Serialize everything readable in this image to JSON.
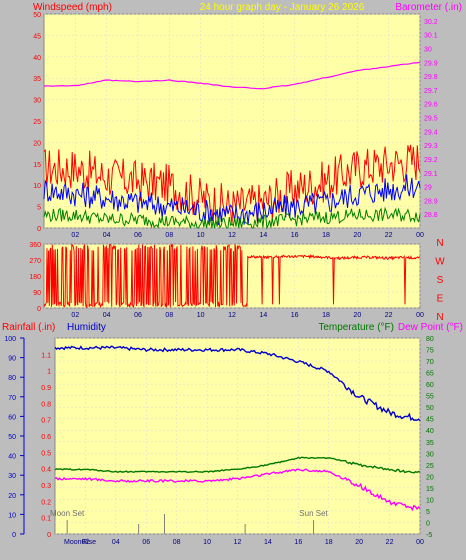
{
  "header": {
    "left_label": "Windspeed (mph)",
    "center_label": "24 hour graph day - January 26 2026",
    "right_label": "Barometer (.in)"
  },
  "colors": {
    "wind_gust": "#ff0000",
    "wind_avg": "#0000ff",
    "wind_min": "#008000",
    "barometer": "#ff00ff",
    "direction": "#ff0000",
    "humidity": "#0000cc",
    "temperature": "#007700",
    "dewpoint": "#ff00ff",
    "plot_bg": "#ffffa8",
    "header_bg": "#bdbdbd"
  },
  "chart_data": [
    {
      "type": "line",
      "panel": "wind_barometer",
      "x_ticks": [
        "02",
        "04",
        "06",
        "08",
        "10",
        "12",
        "14",
        "16",
        "18",
        "20",
        "22",
        "00"
      ],
      "left_axis": {
        "label": "Windspeed (mph)",
        "range": [
          0,
          50
        ],
        "ticks": [
          0,
          5,
          10,
          15,
          20,
          25,
          30,
          35,
          40,
          45,
          50
        ]
      },
      "right_axis": {
        "label": "Barometer (.in)",
        "range": [
          28.7,
          30.25
        ],
        "ticks": [
          "28.8",
          "28.9",
          "29",
          "29.1",
          "29.2",
          "29.3",
          "29.4",
          "29.5",
          "29.6",
          "29.7",
          "29.8",
          "29.9",
          "30",
          "30.1",
          "30.2"
        ]
      },
      "x_hours": [
        0,
        2,
        4,
        6,
        8,
        10,
        12,
        14,
        16,
        18,
        20,
        22,
        24
      ],
      "series": [
        {
          "name": "Wind gust",
          "values": [
            14,
            14,
            12,
            11,
            10,
            7,
            5,
            6,
            9,
            11,
            14,
            15,
            16
          ]
        },
        {
          "name": "Wind average",
          "values": [
            9,
            8,
            7,
            6,
            5,
            4,
            3,
            4,
            5,
            6,
            8,
            9,
            10
          ]
        },
        {
          "name": "Wind minimum",
          "values": [
            3,
            3,
            2,
            2,
            1.5,
            1,
            1,
            1.5,
            2,
            2.5,
            3,
            3,
            3
          ]
        },
        {
          "name": "Barometer",
          "values": [
            29.73,
            29.73,
            29.77,
            29.76,
            29.77,
            29.75,
            29.72,
            29.71,
            29.74,
            29.79,
            29.84,
            29.87,
            29.9
          ]
        }
      ]
    },
    {
      "type": "scatter",
      "panel": "wind_direction",
      "x_ticks": [
        "02",
        "04",
        "06",
        "08",
        "10",
        "12",
        "14",
        "16",
        "18",
        "20",
        "22",
        "00"
      ],
      "left_axis": {
        "range": [
          0,
          360
        ],
        "ticks": [
          0,
          90,
          180,
          270,
          360
        ]
      },
      "right_axis_labels": [
        "N",
        "W",
        "S",
        "E",
        "N"
      ],
      "x_hours": [
        0,
        1,
        2,
        3,
        4,
        5,
        6,
        7,
        8,
        9,
        10,
        11,
        12,
        13,
        14,
        15,
        16,
        17,
        18,
        19,
        20,
        21,
        22,
        23,
        24
      ],
      "values": [
        10,
        330,
        15,
        340,
        20,
        330,
        15,
        350,
        330,
        20,
        340,
        300,
        295,
        290,
        285,
        290,
        290,
        290,
        285,
        280,
        285,
        285,
        280,
        285,
        280
      ]
    },
    {
      "type": "line",
      "panel": "rain_humidity_temperature",
      "header_left": "Rainfall (.in)",
      "header_left2": "Humidity",
      "header_right": "Temperature (°F)",
      "header_right2": "Dew Point (°F)",
      "humidity_axis": {
        "range": [
          0,
          100
        ],
        "ticks": [
          0,
          10,
          20,
          30,
          40,
          50,
          60,
          70,
          80,
          90,
          100
        ]
      },
      "rain_axis": {
        "range": [
          0,
          1.2
        ],
        "ticks": [
          "0",
          "0.1",
          "0.2",
          "0.3",
          "0.4",
          "0.5",
          "0.6",
          "0.7",
          "0.8",
          "0.9",
          "1",
          "1.1"
        ]
      },
      "temp_axis": {
        "range": [
          -5,
          80
        ],
        "ticks": [
          -5,
          0,
          5,
          10,
          15,
          20,
          25,
          30,
          35,
          40,
          45,
          50,
          55,
          60,
          65,
          70,
          75,
          80
        ]
      },
      "x_ticks": [
        "02",
        "04",
        "06",
        "08",
        "10",
        "12",
        "14",
        "16",
        "18",
        "20",
        "22",
        "00"
      ],
      "x_hours": [
        0,
        2,
        4,
        6,
        8,
        10,
        12,
        14,
        16,
        18,
        20,
        21,
        22,
        23,
        24
      ],
      "series": [
        {
          "name": "Humidity",
          "values": [
            95,
            95,
            95,
            94,
            94,
            94,
            94,
            92,
            88,
            83,
            70,
            66,
            62,
            60,
            59
          ]
        },
        {
          "name": "Temperature",
          "values": [
            23,
            23,
            22,
            22,
            22,
            22,
            23,
            25,
            28,
            28,
            25,
            24,
            23,
            22,
            22
          ]
        },
        {
          "name": "Dew Point",
          "values": [
            19,
            19,
            18,
            18,
            18,
            18,
            19,
            21,
            23,
            22,
            16,
            12,
            9,
            7,
            6
          ]
        }
      ],
      "annotations": [
        {
          "label": "Moon Set",
          "hour": 0.8
        },
        {
          "label": "Sun Set",
          "hour": 17.0
        }
      ],
      "bottom_labels": [
        "Moon",
        "Rise"
      ]
    }
  ]
}
